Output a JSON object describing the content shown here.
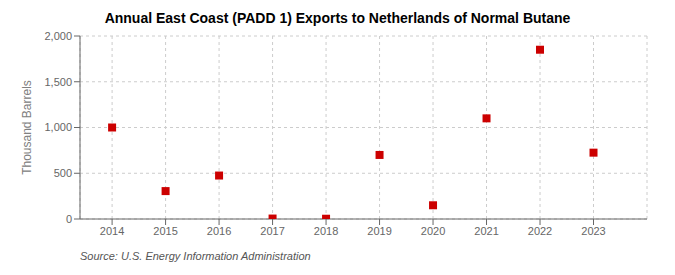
{
  "chart_data": {
    "type": "scatter",
    "title": "Annual East Coast (PADD 1) Exports to Netherlands of Normal Butane",
    "ylabel": "Thousand Barrels",
    "annotations": [
      "Source: U.S. Energy Information Administration"
    ],
    "x": [
      2014,
      2015,
      2016,
      2017,
      2018,
      2019,
      2020,
      2021,
      2022,
      2023
    ],
    "values": [
      1000,
      305,
      475,
      5,
      3,
      700,
      150,
      1100,
      1850,
      725
    ],
    "color": "#cc0000",
    "marker": "square",
    "xlim": [
      2013.4,
      2024.0
    ],
    "xticks": [
      2014,
      2015,
      2016,
      2017,
      2018,
      2019,
      2020,
      2021,
      2022,
      2023
    ],
    "ylim": [
      0,
      2000
    ],
    "yticks": [
      0,
      500,
      {
        "value": 1000,
        "label": "1,000"
      },
      {
        "value": 1500,
        "label": "1,500"
      },
      {
        "value": 2000,
        "label": "2,000"
      }
    ],
    "grid": true
  }
}
